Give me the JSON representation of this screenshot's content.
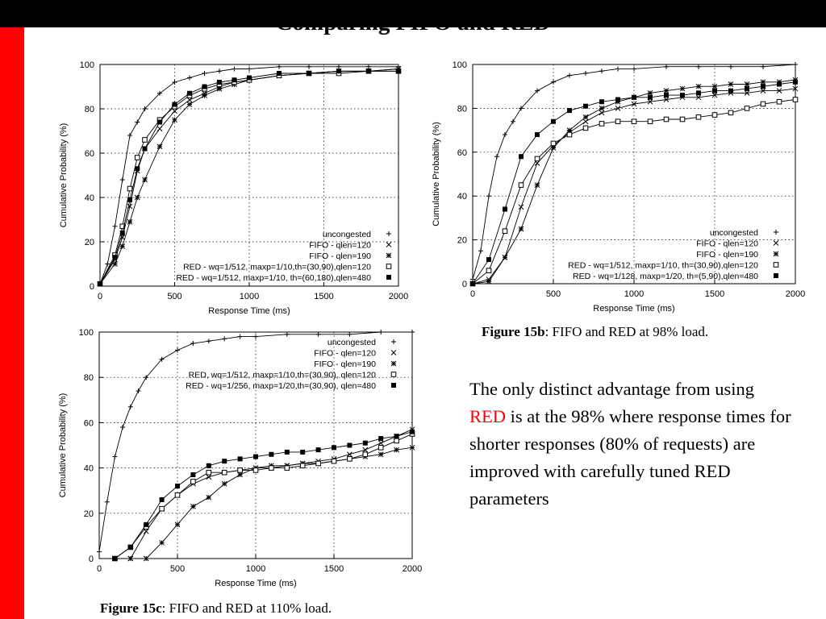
{
  "slide": {
    "title": "Comparing FIFO and RED",
    "text_before": "The only distinct advantage from using ",
    "text_highlight": "RED",
    "text_after": " is at the 98% where response times for shorter responses (80% of requests) are improved with carefully tuned RED parameters",
    "highlight_color": "#ff0000"
  },
  "captions": {
    "c15b": {
      "label": "Figure 15b",
      "text": ": FIFO and RED at 98% load."
    },
    "c15c": {
      "label": "Figure 15c",
      "text": ": FIFO and RED at 110% load."
    }
  },
  "chart_data": [
    {
      "id": "chart-15a",
      "type": "line",
      "xlabel": "Response Time (ms)",
      "ylabel": "Cumulative Probability (%)",
      "xlim": [
        0,
        2000
      ],
      "ylim": [
        0,
        100
      ],
      "xticks": [
        0,
        500,
        1000,
        1500,
        2000
      ],
      "yticks": [
        0,
        20,
        40,
        60,
        80,
        100
      ],
      "grid": "dotted",
      "legend_position": "bottom-right",
      "series": [
        {
          "name": "uncongested",
          "marker": "plus",
          "x": [
            0,
            50,
            100,
            150,
            200,
            250,
            300,
            400,
            500,
            600,
            700,
            800,
            900,
            1000,
            1200,
            1400,
            1600,
            1800,
            2000
          ],
          "y": [
            1,
            10,
            27,
            48,
            68,
            74,
            80,
            87,
            92,
            94,
            96,
            97,
            98,
            98,
            99,
            99,
            99,
            99,
            99
          ]
        },
        {
          "name": "FIFO - qlen=120",
          "marker": "x",
          "x": [
            0,
            100,
            150,
            200,
            250,
            300,
            400,
            500,
            600,
            700,
            800,
            900,
            1000,
            1200,
            1400,
            1600,
            1800,
            2000
          ],
          "y": [
            1,
            12,
            22,
            36,
            52,
            62,
            71,
            79,
            84,
            87,
            90,
            92,
            93,
            95,
            96,
            97,
            97,
            98
          ]
        },
        {
          "name": "FIFO - qlen=190",
          "marker": "star",
          "x": [
            0,
            100,
            150,
            200,
            250,
            300,
            400,
            500,
            600,
            700,
            800,
            900,
            1000,
            1200,
            1400,
            1600,
            1800,
            2000
          ],
          "y": [
            1,
            10,
            18,
            29,
            40,
            48,
            63,
            75,
            82,
            86,
            89,
            91,
            93,
            95,
            96,
            97,
            97,
            98
          ]
        },
        {
          "name": "RED - wq=1/512, maxp=1/10,th=(30,90),qlen=120",
          "marker": "square",
          "x": [
            0,
            100,
            150,
            200,
            250,
            300,
            400,
            500,
            600,
            700,
            800,
            900,
            1000,
            1200,
            1400,
            1600,
            1800,
            2000
          ],
          "y": [
            1,
            14,
            27,
            44,
            58,
            66,
            75,
            81,
            86,
            89,
            91,
            92,
            93,
            95,
            96,
            96,
            97,
            97
          ]
        },
        {
          "name": "RED - wq=1/512, maxp=1/10, th=(60,180),qlen=480",
          "marker": "filled-square",
          "x": [
            0,
            100,
            150,
            200,
            250,
            300,
            400,
            500,
            600,
            700,
            800,
            900,
            1000,
            1200,
            1400,
            1600,
            1800,
            2000
          ],
          "y": [
            1,
            13,
            24,
            39,
            53,
            62,
            74,
            82,
            87,
            90,
            92,
            93,
            94,
            96,
            96,
            97,
            97,
            97
          ]
        }
      ]
    },
    {
      "id": "chart-15b",
      "type": "line",
      "xlabel": "Response Time (ms)",
      "ylabel": "Cumulative Probability (%)",
      "xlim": [
        0,
        2000
      ],
      "ylim": [
        0,
        100
      ],
      "xticks": [
        0,
        500,
        1000,
        1500,
        2000
      ],
      "yticks": [
        0,
        20,
        40,
        60,
        80,
        100
      ],
      "grid": "dotted",
      "legend_position": "bottom-right",
      "series": [
        {
          "name": "uncongested",
          "marker": "plus",
          "x": [
            0,
            50,
            100,
            150,
            200,
            250,
            300,
            400,
            500,
            600,
            700,
            800,
            900,
            1000,
            1200,
            1400,
            1600,
            1800,
            2000
          ],
          "y": [
            2,
            15,
            40,
            58,
            68,
            74,
            80,
            88,
            92,
            95,
            96,
            97,
            98,
            98,
            99,
            99,
            99,
            99,
            100
          ]
        },
        {
          "name": "FIFO - qlen=120",
          "marker": "x",
          "x": [
            0,
            100,
            200,
            300,
            400,
            500,
            600,
            700,
            800,
            900,
            1000,
            1100,
            1200,
            1300,
            1400,
            1500,
            1600,
            1700,
            1800,
            1900,
            2000
          ],
          "y": [
            0,
            2,
            12,
            35,
            55,
            63,
            69,
            74,
            78,
            80,
            82,
            83,
            84,
            85,
            85,
            86,
            87,
            87,
            88,
            88,
            89
          ]
        },
        {
          "name": "FIFO - qlen=190",
          "marker": "star",
          "x": [
            0,
            100,
            200,
            300,
            400,
            500,
            600,
            700,
            800,
            900,
            1000,
            1100,
            1200,
            1300,
            1400,
            1500,
            1600,
            1700,
            1800,
            1900,
            2000
          ],
          "y": [
            0,
            1,
            12,
            25,
            45,
            62,
            70,
            76,
            80,
            83,
            85,
            87,
            88,
            89,
            90,
            90,
            91,
            91,
            92,
            92,
            93
          ]
        },
        {
          "name": "RED - wq=1/512, maxp=1/10, th=(30,90),qlen=120",
          "marker": "square",
          "x": [
            0,
            100,
            200,
            300,
            400,
            500,
            600,
            700,
            800,
            900,
            1000,
            1100,
            1200,
            1300,
            1400,
            1500,
            1600,
            1700,
            1800,
            1900,
            2000
          ],
          "y": [
            0,
            6,
            24,
            45,
            57,
            64,
            68,
            71,
            73,
            74,
            74,
            74,
            75,
            75,
            76,
            77,
            78,
            80,
            82,
            83,
            84
          ]
        },
        {
          "name": "RED - wq=1/128, maxp=1/20, th=(5,90),qlen=480",
          "marker": "filled-square",
          "x": [
            0,
            100,
            200,
            300,
            400,
            500,
            600,
            700,
            800,
            900,
            1000,
            1100,
            1200,
            1300,
            1400,
            1500,
            1600,
            1700,
            1800,
            1900,
            2000
          ],
          "y": [
            0,
            11,
            34,
            58,
            68,
            74,
            79,
            81,
            83,
            84,
            85,
            85,
            86,
            86,
            87,
            88,
            88,
            89,
            90,
            91,
            92
          ]
        }
      ]
    },
    {
      "id": "chart-15c",
      "type": "line",
      "xlabel": "Response Time (ms)",
      "ylabel": "Cumulative Probability (%)",
      "xlim": [
        0,
        2000
      ],
      "ylim": [
        0,
        100
      ],
      "xticks": [
        0,
        500,
        1000,
        1500,
        2000
      ],
      "yticks": [
        0,
        20,
        40,
        60,
        80,
        100
      ],
      "grid": "dotted",
      "legend_position": "top-right",
      "series": [
        {
          "name": "uncongested",
          "marker": "plus",
          "x": [
            0,
            50,
            100,
            150,
            200,
            250,
            300,
            400,
            500,
            600,
            700,
            800,
            900,
            1000,
            1200,
            1400,
            1600,
            1800,
            2000
          ],
          "y": [
            3,
            25,
            45,
            58,
            67,
            74,
            80,
            88,
            92,
            95,
            96,
            97,
            98,
            98,
            99,
            99,
            99,
            100,
            100
          ]
        },
        {
          "name": "FIFO - qlen=120",
          "marker": "x",
          "x": [
            100,
            200,
            300,
            400,
            500,
            600,
            700,
            800,
            900,
            1000,
            1100,
            1200,
            1300,
            1400,
            1500,
            1600,
            1700,
            1800,
            1900,
            2000
          ],
          "y": [
            0,
            0,
            12,
            22,
            28,
            33,
            36,
            38,
            39,
            40,
            40,
            41,
            42,
            43,
            44,
            46,
            48,
            51,
            54,
            57
          ]
        },
        {
          "name": "FIFO - qlen=190",
          "marker": "star",
          "x": [
            200,
            300,
            400,
            500,
            600,
            700,
            800,
            900,
            1000,
            1100,
            1200,
            1300,
            1400,
            1500,
            1600,
            1700,
            1800,
            1900,
            2000
          ],
          "y": [
            0,
            0,
            7,
            15,
            23,
            27,
            33,
            37,
            40,
            41,
            41,
            42,
            42,
            43,
            44,
            45,
            46,
            48,
            49
          ]
        },
        {
          "name": "RED, wq=1/512, maxp=1/10,th=(30,90), qlen=120",
          "marker": "square",
          "x": [
            100,
            200,
            300,
            400,
            500,
            600,
            700,
            800,
            900,
            1000,
            1100,
            1200,
            1300,
            1400,
            1500,
            1600,
            1700,
            1800,
            1900,
            2000
          ],
          "y": [
            0,
            5,
            14,
            22,
            28,
            34,
            38,
            38,
            39,
            39,
            40,
            40,
            41,
            42,
            43,
            44,
            46,
            49,
            52,
            55
          ]
        },
        {
          "name": "RED - wq=1/256, maxp=1/20,th=(30,90), qlen=480",
          "marker": "filled-square",
          "x": [
            100,
            200,
            300,
            400,
            500,
            600,
            700,
            800,
            900,
            1000,
            1100,
            1200,
            1300,
            1400,
            1500,
            1600,
            1700,
            1800,
            1900,
            2000
          ],
          "y": [
            0,
            5,
            15,
            26,
            32,
            37,
            41,
            43,
            44,
            45,
            46,
            47,
            47,
            48,
            49,
            50,
            51,
            53,
            54,
            56
          ]
        }
      ]
    }
  ]
}
